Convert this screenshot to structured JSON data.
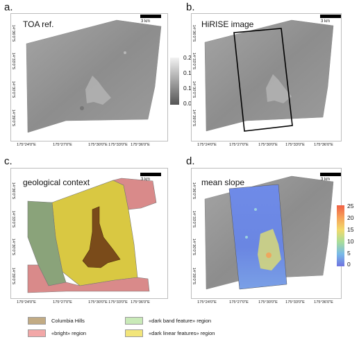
{
  "panels": {
    "a": {
      "letter": "a.",
      "title": "TOA ref.",
      "scale": "3 km"
    },
    "b": {
      "letter": "b.",
      "title": "HiRISE image",
      "scale": "3 km"
    },
    "c": {
      "letter": "c.",
      "title": "geological context",
      "scale": "3 km"
    },
    "d": {
      "letter": "d.",
      "title": "mean slope",
      "scale": "3 km"
    }
  },
  "x_ticks": [
    "175°24'0\"E",
    "175°27'0\"E",
    "175°30'0\"E",
    "175°33'0\"E",
    "175°36'0\"E"
  ],
  "y_ticks": [
    "14°36'0\"S",
    "14°33'0\"S",
    "14°30'0\"S",
    "14°39'0\"S"
  ],
  "toa_colorbar": {
    "ticks": [
      "0.20",
      "0.15",
      "0.10",
      "0.05"
    ],
    "min_color": "#555555",
    "max_color": "#f2f2f2"
  },
  "slope_colorbar": {
    "ticks": [
      "25",
      "20",
      "15",
      "10",
      "5",
      "0"
    ],
    "colors": [
      "#f06045",
      "#f6a259",
      "#f2da6c",
      "#a8dd9a",
      "#78b9e8",
      "#6f73e0"
    ]
  },
  "legend": [
    {
      "label": "Columbia Hills",
      "color": "#c2ab84"
    },
    {
      "label": "«bright» region",
      "color": "#f2a7a7"
    },
    {
      "label": "«dark band feature» region",
      "color": "#c9eab8"
    },
    {
      "label": "«dark linear features» region",
      "color": "#f2e57a"
    }
  ],
  "colors": {
    "terrain": "#8f8f8f",
    "columbia_hills": "#7a4b1a",
    "bright_region": "#d98a8a",
    "dark_band": "#8aa37a",
    "dark_linear": "#d9c842",
    "hirise_outline": "#000000"
  }
}
